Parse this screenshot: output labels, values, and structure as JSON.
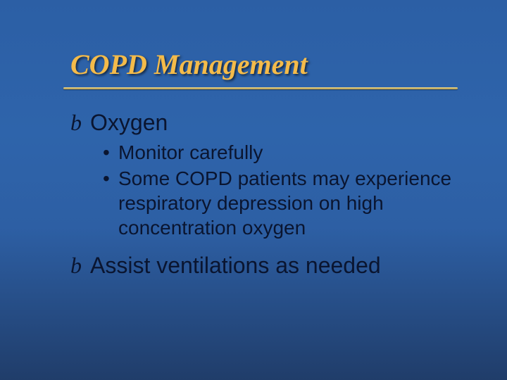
{
  "slide": {
    "title": "COPD Management",
    "background_gradient": [
      "#2c5fa5",
      "#2e64ab",
      "#2d5fa4",
      "#203d6a"
    ],
    "title_color": "#f4bb4a",
    "text_color": "#0a1530",
    "underline_color": "#e8d896",
    "title_fontsize": 40,
    "top_fontsize": 32,
    "sub_fontsize": 28,
    "items": [
      {
        "bullet": "b",
        "text": "Oxygen",
        "sub": [
          "Monitor carefully",
          "Some COPD patients may experience respiratory depression on high concentration oxygen"
        ]
      },
      {
        "bullet": "b",
        "text": "Assist ventilations as needed",
        "sub": []
      }
    ]
  }
}
